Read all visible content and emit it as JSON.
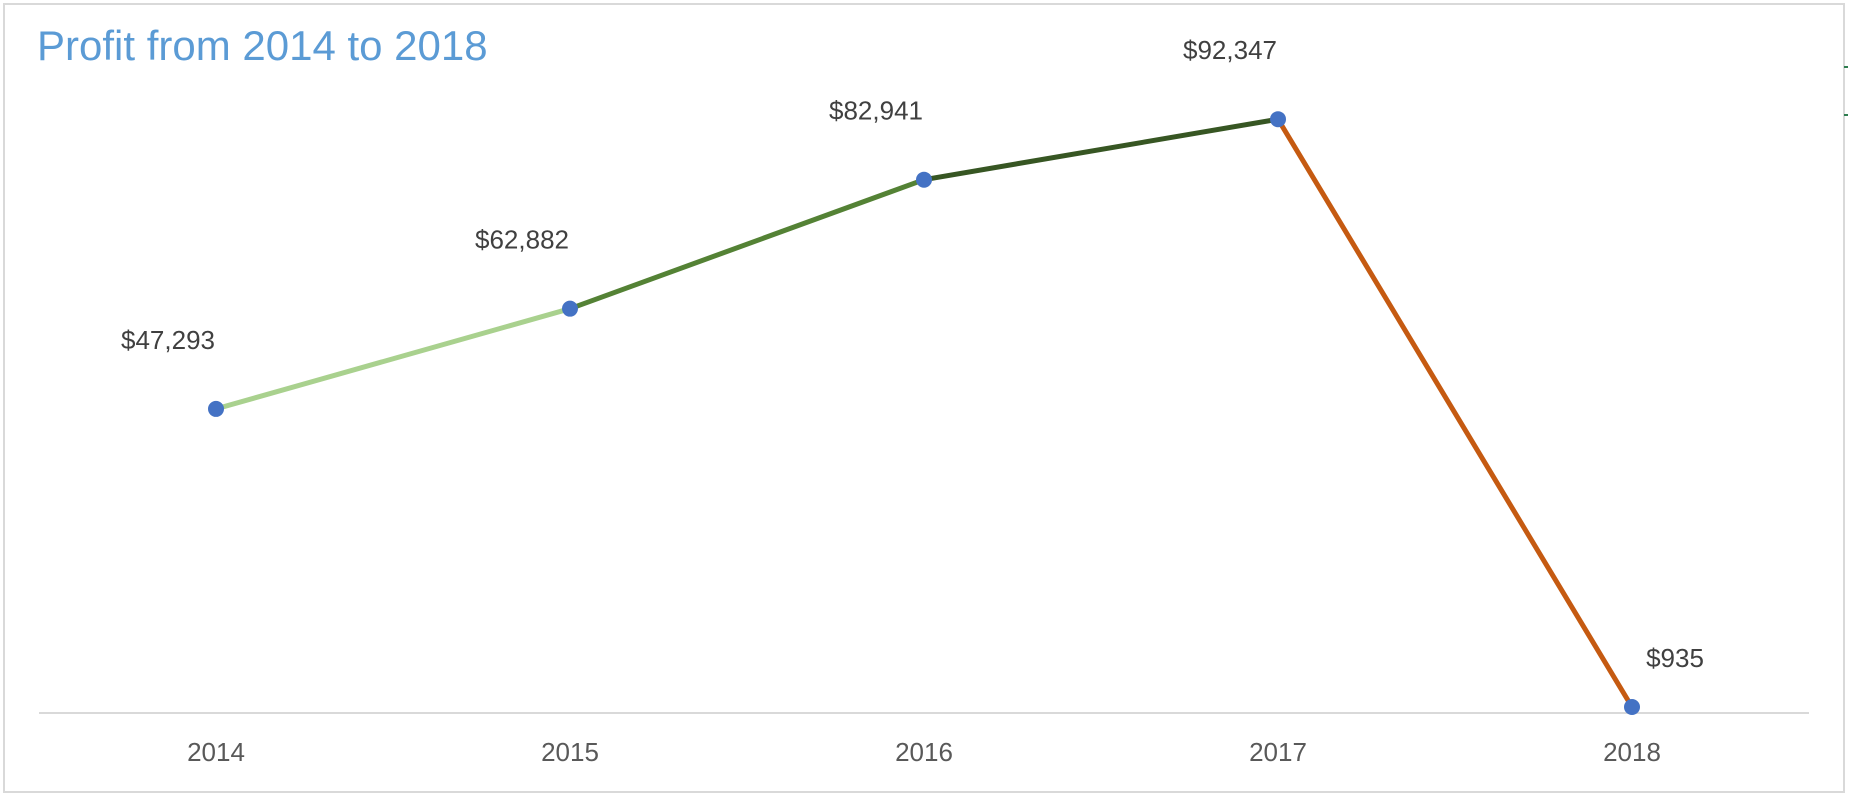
{
  "chart_data": {
    "type": "line",
    "title": "Profit from 2014 to 2018",
    "categories": [
      "2014",
      "2015",
      "2016",
      "2017",
      "2018"
    ],
    "values": [
      47293,
      62882,
      82941,
      92347,
      935
    ],
    "data_labels": [
      "$47,293",
      "$62,882",
      "$82,941",
      "$92,347",
      "$935"
    ],
    "ylim": [
      0,
      100000
    ],
    "xlabel": "",
    "ylabel": "",
    "grid": false,
    "legend": "none",
    "segment_colors": [
      "#a9d18e",
      "#548235",
      "#375623",
      "#c55a11"
    ],
    "marker_color": "#4472c4",
    "title_color": "#5b9bd5"
  }
}
